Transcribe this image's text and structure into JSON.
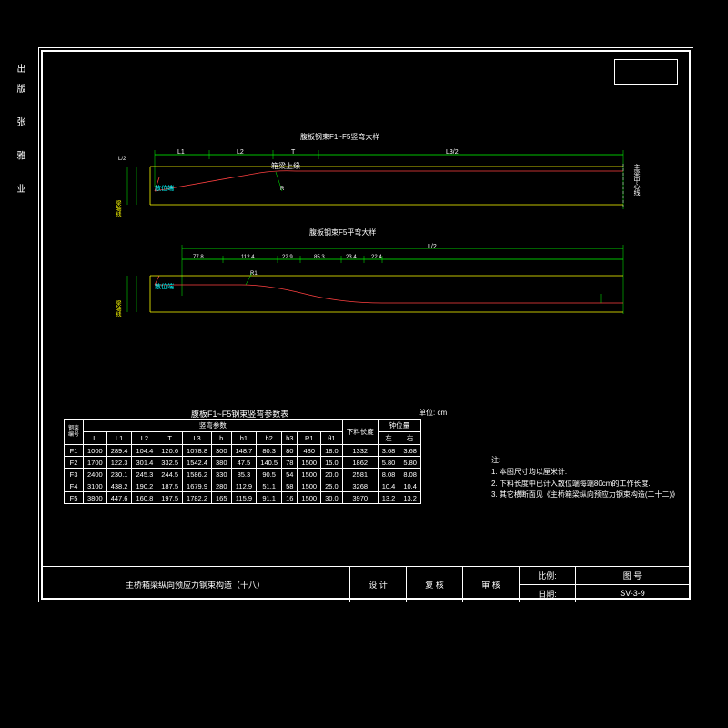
{
  "meta": {
    "vertical_text": "出版 张 雅 业",
    "drawing_title": "主桥箱梁纵向预应力钢束构造（十八）",
    "drawing_no": "SV-3-9"
  },
  "colors": {
    "red": "#ff4040",
    "yellow": "#ffff00",
    "green": "#00ff00",
    "cyan": "#00ffff",
    "white": "#ffffff",
    "bg": "#000000"
  },
  "diagram1": {
    "title": "腹板钢束F1~F5竖弯大样",
    "center_label": "箱梁上缘",
    "end_label": "主梁中心线",
    "anchor_label": "散位端",
    "axis_label": "梁轴线",
    "dims_top": [
      "L1",
      "L2",
      "T",
      "L3/2"
    ],
    "dims_left": [
      "L",
      "L/2"
    ],
    "radius": "R",
    "h_labels": [
      "h",
      "h1"
    ]
  },
  "diagram2": {
    "title": "腹板钢束F5平弯大样",
    "dims_top": [
      "77.8",
      "112.4",
      "22.9",
      "85.3",
      "23.4",
      "22.4"
    ],
    "span": "L/2",
    "anchor_label": "散位端",
    "axis_label": "梁轴线",
    "r_label": "R1"
  },
  "table": {
    "title": "腹板F1~F5钢束竖弯参数表",
    "unit": "单位: cm",
    "group_headers": [
      "参数",
      "竖弯参数",
      "下料长度",
      "钟位量"
    ],
    "col_headers": [
      "钢束编号",
      "L",
      "L1",
      "L2",
      "T",
      "L3",
      "h",
      "h1",
      "h2",
      "h3",
      "R1",
      "θ1",
      "",
      "左",
      "右"
    ],
    "rows": [
      [
        "F1",
        "1000",
        "289.4",
        "104.4",
        "120.6",
        "1078.8",
        "300",
        "148.7",
        "80.3",
        "80",
        "480",
        "18.0",
        "1332",
        "3.68",
        "3.68"
      ],
      [
        "F2",
        "1700",
        "122.3",
        "301.4",
        "332.5",
        "1542.4",
        "380",
        "47.5",
        "140.5",
        "78",
        "1500",
        "15.0",
        "1862",
        "5.80",
        "5.80"
      ],
      [
        "F3",
        "2400",
        "230.1",
        "245.3",
        "244.5",
        "1586.2",
        "330",
        "85.3",
        "90.5",
        "54",
        "1500",
        "20.0",
        "2581",
        "8.08",
        "8.08"
      ],
      [
        "F4",
        "3100",
        "438.2",
        "190.2",
        "187.5",
        "1679.9",
        "280",
        "112.9",
        "51.1",
        "58",
        "1500",
        "25.0",
        "3268",
        "10.4",
        "10.4"
      ],
      [
        "F5",
        "3800",
        "447.6",
        "160.8",
        "197.5",
        "1782.2",
        "165",
        "115.9",
        "91.1",
        "16",
        "1500",
        "30.0",
        "3970",
        "13.2",
        "13.2"
      ]
    ]
  },
  "notes": {
    "header": "注:",
    "lines": [
      "1. 本图尺寸均以厘米计.",
      "2. 下料长度中已计入散位端每端80cm的工作长度.",
      "3. 其它横断面见《主桥箱梁纵向预应力钢束构造(二十二)》"
    ]
  },
  "title_block": {
    "design": "设 计",
    "review": "复 核",
    "check": "审 核",
    "scale": "比例:",
    "date": "日期:",
    "dwg": "图 号"
  }
}
